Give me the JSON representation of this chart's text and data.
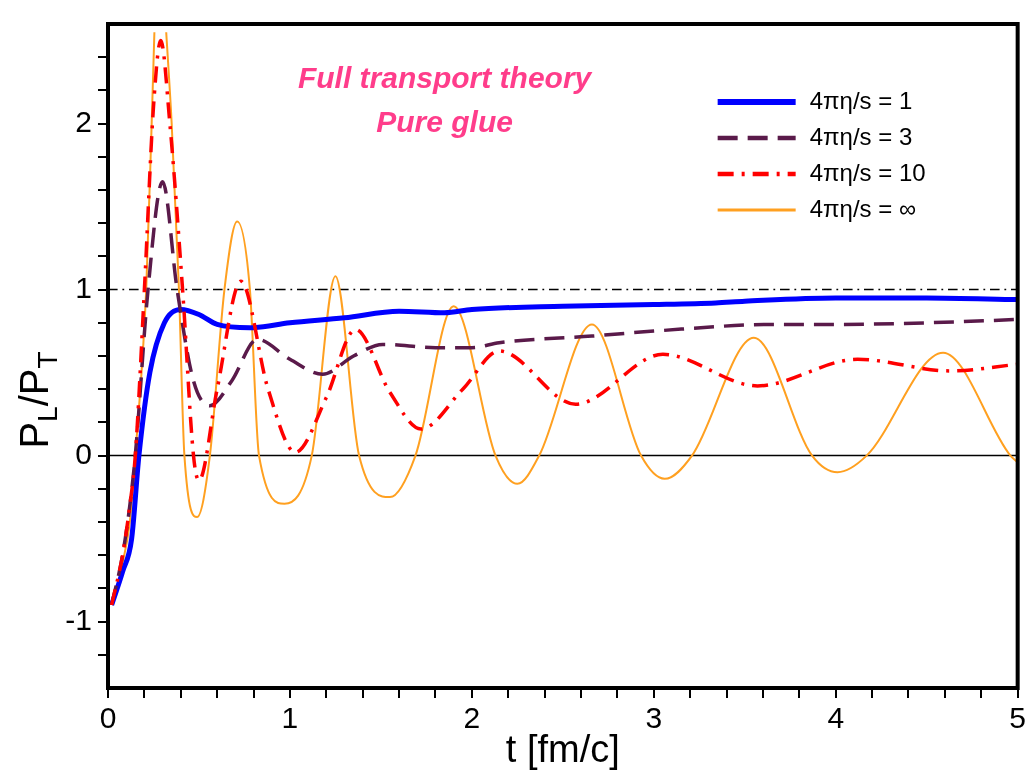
{
  "chart_data": {
    "type": "line",
    "xlabel": "t [fm/c]",
    "ylabel": "P$_{L}$/P$_{T}$",
    "annotations": [
      "Full transport theory",
      "Pure glue"
    ],
    "xlim": [
      0,
      5
    ],
    "ylim": [
      -1.4,
      2.6
    ],
    "xticks": [
      0,
      {
        "value": 0.2,
        "label": null
      },
      {
        "value": 0.4,
        "label": null
      },
      {
        "value": 0.6,
        "label": null
      },
      {
        "value": 0.8,
        "label": null
      },
      1,
      {
        "value": 1.2,
        "label": null
      },
      {
        "value": 1.4,
        "label": null
      },
      {
        "value": 1.6,
        "label": null
      },
      {
        "value": 1.8,
        "label": null
      },
      2,
      {
        "value": 2.2,
        "label": null
      },
      {
        "value": 2.4,
        "label": null
      },
      {
        "value": 2.6,
        "label": null
      },
      {
        "value": 2.8,
        "label": null
      },
      3,
      {
        "value": 3.2,
        "label": null
      },
      {
        "value": 3.4,
        "label": null
      },
      {
        "value": 3.6,
        "label": null
      },
      {
        "value": 3.8,
        "label": null
      },
      4,
      {
        "value": 4.2,
        "label": null
      },
      {
        "value": 4.4,
        "label": null
      },
      {
        "value": 4.6,
        "label": null
      },
      {
        "value": 4.8,
        "label": null
      },
      5
    ],
    "yticks": [
      {
        "value": -1.2,
        "label": null
      },
      -1,
      {
        "value": -0.8,
        "label": null
      },
      {
        "value": -0.6,
        "label": null
      },
      {
        "value": -0.4,
        "label": null
      },
      {
        "value": -0.2,
        "label": null
      },
      0,
      {
        "value": 0.2,
        "label": null
      },
      {
        "value": 0.4,
        "label": null
      },
      {
        "value": 0.6,
        "label": null
      },
      {
        "value": 0.8,
        "label": null
      },
      1,
      {
        "value": 1.2,
        "label": null
      },
      {
        "value": 1.4,
        "label": null
      },
      {
        "value": 1.6,
        "label": null
      },
      {
        "value": 1.8,
        "label": null
      },
      2,
      {
        "value": 2.2,
        "label": null
      },
      {
        "value": 2.4,
        "label": null
      }
    ],
    "grid": false,
    "legend": "top right",
    "marker": "none",
    "ref_lines": [
      {
        "axis": "y",
        "value": 1,
        "color": "#000000",
        "line_style": "dashdot"
      },
      {
        "axis": "y",
        "value": 0,
        "color": "#000000",
        "line_style": "solid"
      }
    ],
    "series": [
      {
        "name": "4πη/s = 1",
        "color": "#0000ff",
        "line_style": "solid",
        "x": [
          0.02,
          0.08,
          0.13,
          0.17,
          0.23,
          0.31,
          0.4,
          0.5,
          0.6,
          0.78,
          1.0,
          1.3,
          1.6,
          1.85,
          2.0,
          2.5,
          3.0,
          3.34,
          3.5,
          4.0,
          4.5,
          5.0
        ],
        "values": [
          -0.9,
          -0.7,
          -0.5,
          0,
          0.5,
          0.8,
          0.88,
          0.85,
          0.79,
          0.77,
          0.8,
          0.83,
          0.87,
          0.86,
          0.88,
          0.9,
          0.91,
          0.92,
          0.93,
          0.95,
          0.95,
          0.94
        ]
      },
      {
        "name": "4πη/s = 3",
        "color": "#5a1a4a",
        "line_style": "dashed",
        "x": [
          0.02,
          0.08,
          0.12,
          0.15,
          0.22,
          0.3,
          0.38,
          0.47,
          0.56,
          0.68,
          0.82,
          1.0,
          1.18,
          1.35,
          1.51,
          1.8,
          2.0,
          2.15,
          2.66,
          3.0,
          3.66,
          4.0,
          4.5,
          5.0
        ],
        "values": [
          -0.9,
          -0.6,
          -0.3,
          0,
          1,
          1.65,
          1,
          0.45,
          0.3,
          0.45,
          0.7,
          0.58,
          0.49,
          0.6,
          0.67,
          0.65,
          0.65,
          0.68,
          0.72,
          0.75,
          0.79,
          0.79,
          0.8,
          0.82
        ]
      },
      {
        "name": "4πη/s = 10",
        "color": "#ff0000",
        "line_style": "dashdot",
        "x": [
          0.02,
          0.08,
          0.12,
          0.15,
          0.2,
          0.25,
          0.29,
          0.34,
          0.41,
          0.47,
          0.5,
          0.6,
          0.73,
          0.88,
          1.03,
          1.2,
          1.36,
          1.55,
          1.72,
          1.95,
          2.15,
          2.57,
          3.05,
          3.57,
          4.12,
          4.63,
          5.0
        ],
        "values": [
          -0.9,
          -0.6,
          -0.3,
          0,
          1,
          2.1,
          2.5,
          2.0,
          1,
          0,
          -0.15,
          0.4,
          1.05,
          0.4,
          0.02,
          0.35,
          0.76,
          0.38,
          0.16,
          0.4,
          0.63,
          0.31,
          0.61,
          0.42,
          0.58,
          0.51,
          0.55
        ]
      },
      {
        "name": "4πη/s = ∞",
        "color": "#ffa020",
        "line_style": "solid",
        "x": [
          0.07,
          0.12,
          0.15,
          0.21,
          0.24,
          0.255,
          0.29,
          0.32,
          0.35,
          0.39,
          0.42,
          0.49,
          0.56,
          0.64,
          0.71,
          0.78,
          0.83,
          0.97,
          1.12,
          1.25,
          1.38,
          1.55,
          1.69,
          1.9,
          2.13,
          2.25,
          2.37,
          2.66,
          2.93,
          3.06,
          3.21,
          3.55,
          3.87,
          4.01,
          4.17,
          4.59,
          4.96,
          5.0
        ],
        "values": [
          -0.7,
          -0.4,
          0,
          1,
          2,
          2.55,
          null,
          2.55,
          2,
          1,
          0,
          -0.37,
          0,
          1.0,
          1.41,
          1.0,
          0,
          -0.29,
          0,
          1.08,
          0,
          -0.25,
          0,
          0.9,
          0,
          -0.17,
          0,
          0.79,
          0,
          -0.14,
          0,
          0.71,
          0,
          -0.1,
          0,
          0.62,
          0,
          -0.04
        ]
      }
    ]
  }
}
